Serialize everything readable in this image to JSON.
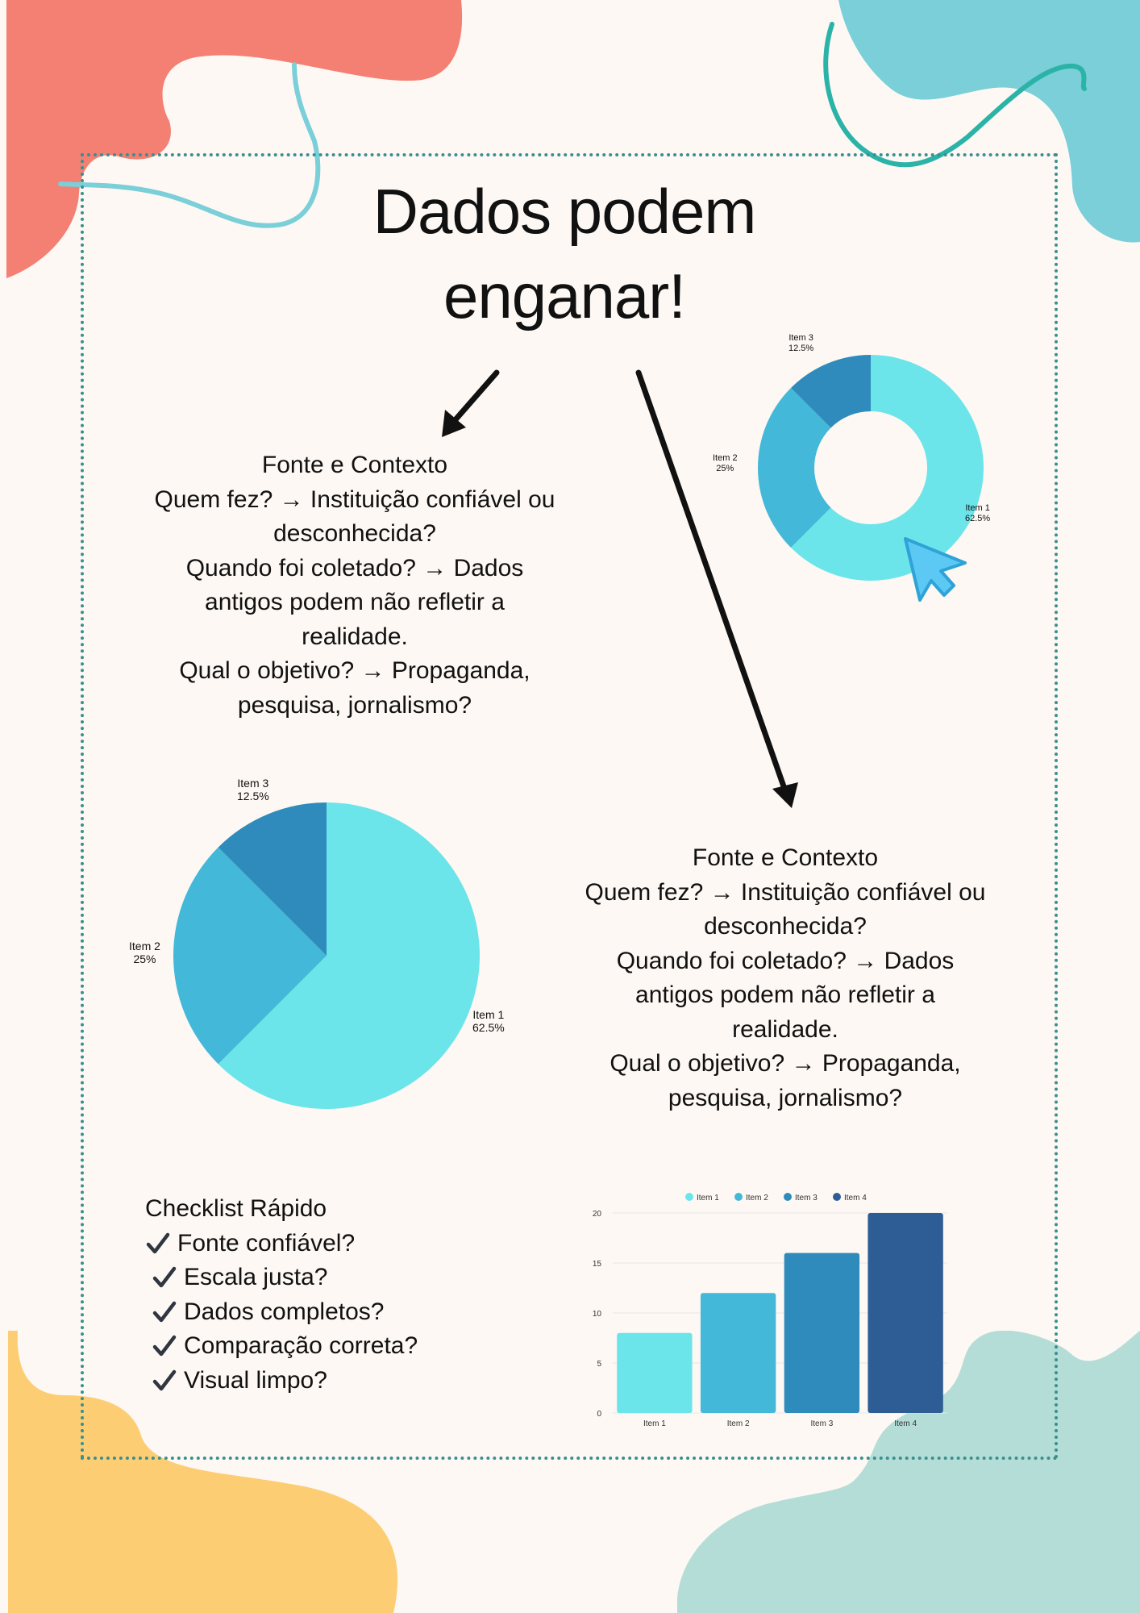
{
  "title": {
    "line1": "Dados podem",
    "line2": "enganar!"
  },
  "info_block_1": {
    "heading": "Fonte e Contexto",
    "lines": [
      "Quem fez? → Instituição confiável ou",
      "desconhecida?",
      "Quando foi coletado? → Dados",
      "antigos podem não refletir a",
      "realidade.",
      "Qual o objetivo? → Propaganda,",
      "pesquisa, jornalismo?"
    ]
  },
  "info_block_2": {
    "heading": "Fonte e Contexto",
    "lines": [
      "Quem fez? → Instituição confiável ou",
      "desconhecida?",
      "Quando foi coletado? → Dados",
      "antigos podem não refletir a",
      "realidade.",
      "Qual o objetivo? → Propaganda,",
      "pesquisa, jornalismo?"
    ]
  },
  "checklist": {
    "title": "Checklist Rápido",
    "items": [
      "Fonte confiável?",
      "Escala justa?",
      "Dados completos?",
      "Comparação correta?",
      "Visual limpo?"
    ]
  },
  "colors": {
    "item1": "#6ce5ea",
    "item2": "#43b8d8",
    "item3": "#2e8bbb",
    "item4": "#2e5d96",
    "coral": "#f47f73",
    "teal": "#7acfd8",
    "yellow": "#fdcd74",
    "mint": "#b3ddd6",
    "frame": "#3a8f8f",
    "cursor": "#5cc9f5"
  },
  "chart_data": [
    {
      "type": "pie",
      "variant": "donut",
      "slices": [
        {
          "label": "Item 1",
          "value": 62.5,
          "display": "62.5%"
        },
        {
          "label": "Item 2",
          "value": 25,
          "display": "25%"
        },
        {
          "label": "Item 3",
          "value": 12.5,
          "display": "12.5%"
        }
      ]
    },
    {
      "type": "pie",
      "slices": [
        {
          "label": "Item 1",
          "value": 62.5,
          "display": "62.5%"
        },
        {
          "label": "Item 2",
          "value": 25,
          "display": "25%"
        },
        {
          "label": "Item 3",
          "value": 12.5,
          "display": "12.5%"
        }
      ]
    },
    {
      "type": "bar",
      "categories": [
        "Item 1",
        "Item 2",
        "Item 3",
        "Item 4"
      ],
      "values": [
        8,
        12,
        16,
        20
      ],
      "legend": [
        "Item 1",
        "Item 2",
        "Item 3",
        "Item 4"
      ],
      "legend_position": "top",
      "ylim": [
        0,
        20
      ],
      "yticks": [
        0,
        5,
        10,
        15,
        20
      ],
      "grid": true
    }
  ]
}
